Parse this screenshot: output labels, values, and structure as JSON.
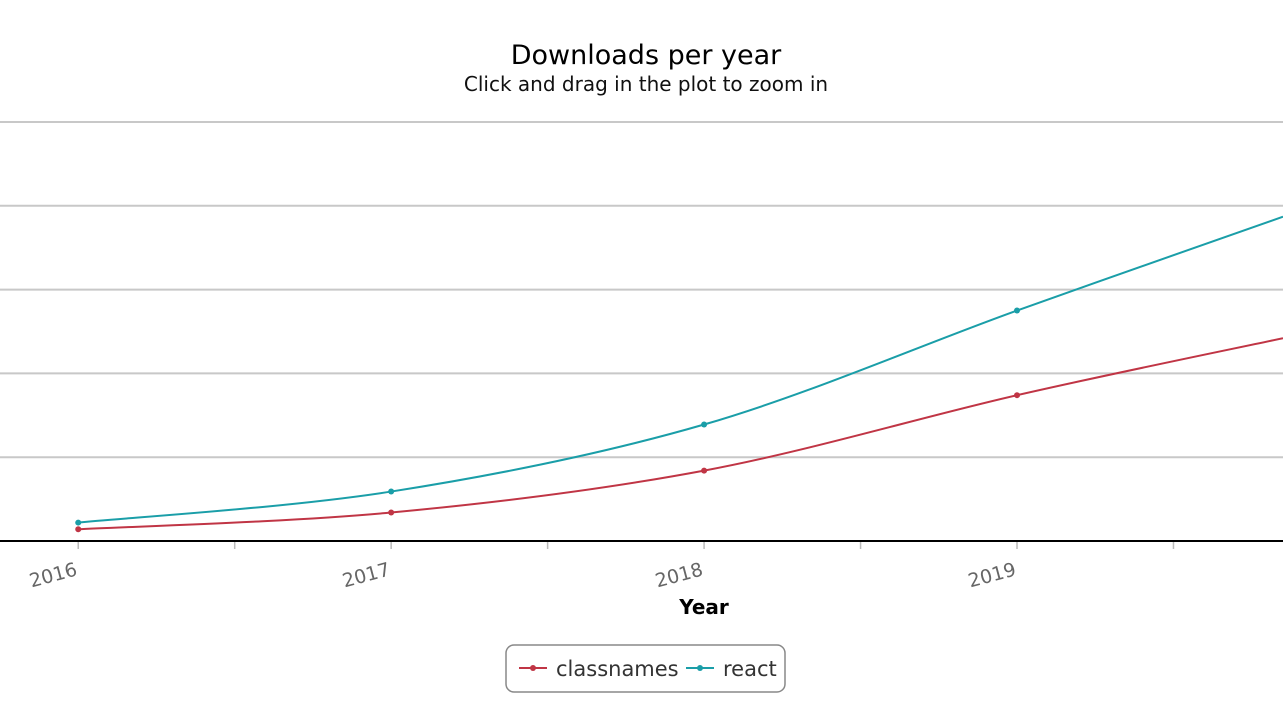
{
  "chart_data": {
    "type": "line",
    "title": "Downloads per year",
    "subtitle": "Click and drag in the plot to zoom in",
    "xlabel": "Year",
    "ylabel": "",
    "x": [
      2016,
      2017,
      2018,
      2019
    ],
    "x_ticks": [
      "2016",
      "2017",
      "2018",
      "2019"
    ],
    "xlim": [
      2015.75,
      2019.85
    ],
    "ylim": [
      0,
      5
    ],
    "grid": true,
    "legend_position": "bottom-center",
    "series": [
      {
        "name": "classnames",
        "color": "#c03545",
        "values": [
          0.14,
          0.34,
          0.84,
          1.74
        ],
        "end_value": 2.42
      },
      {
        "name": "react",
        "color": "#1a9ea8",
        "values": [
          0.22,
          0.59,
          1.39,
          2.75
        ],
        "end_value": 3.87
      }
    ]
  }
}
